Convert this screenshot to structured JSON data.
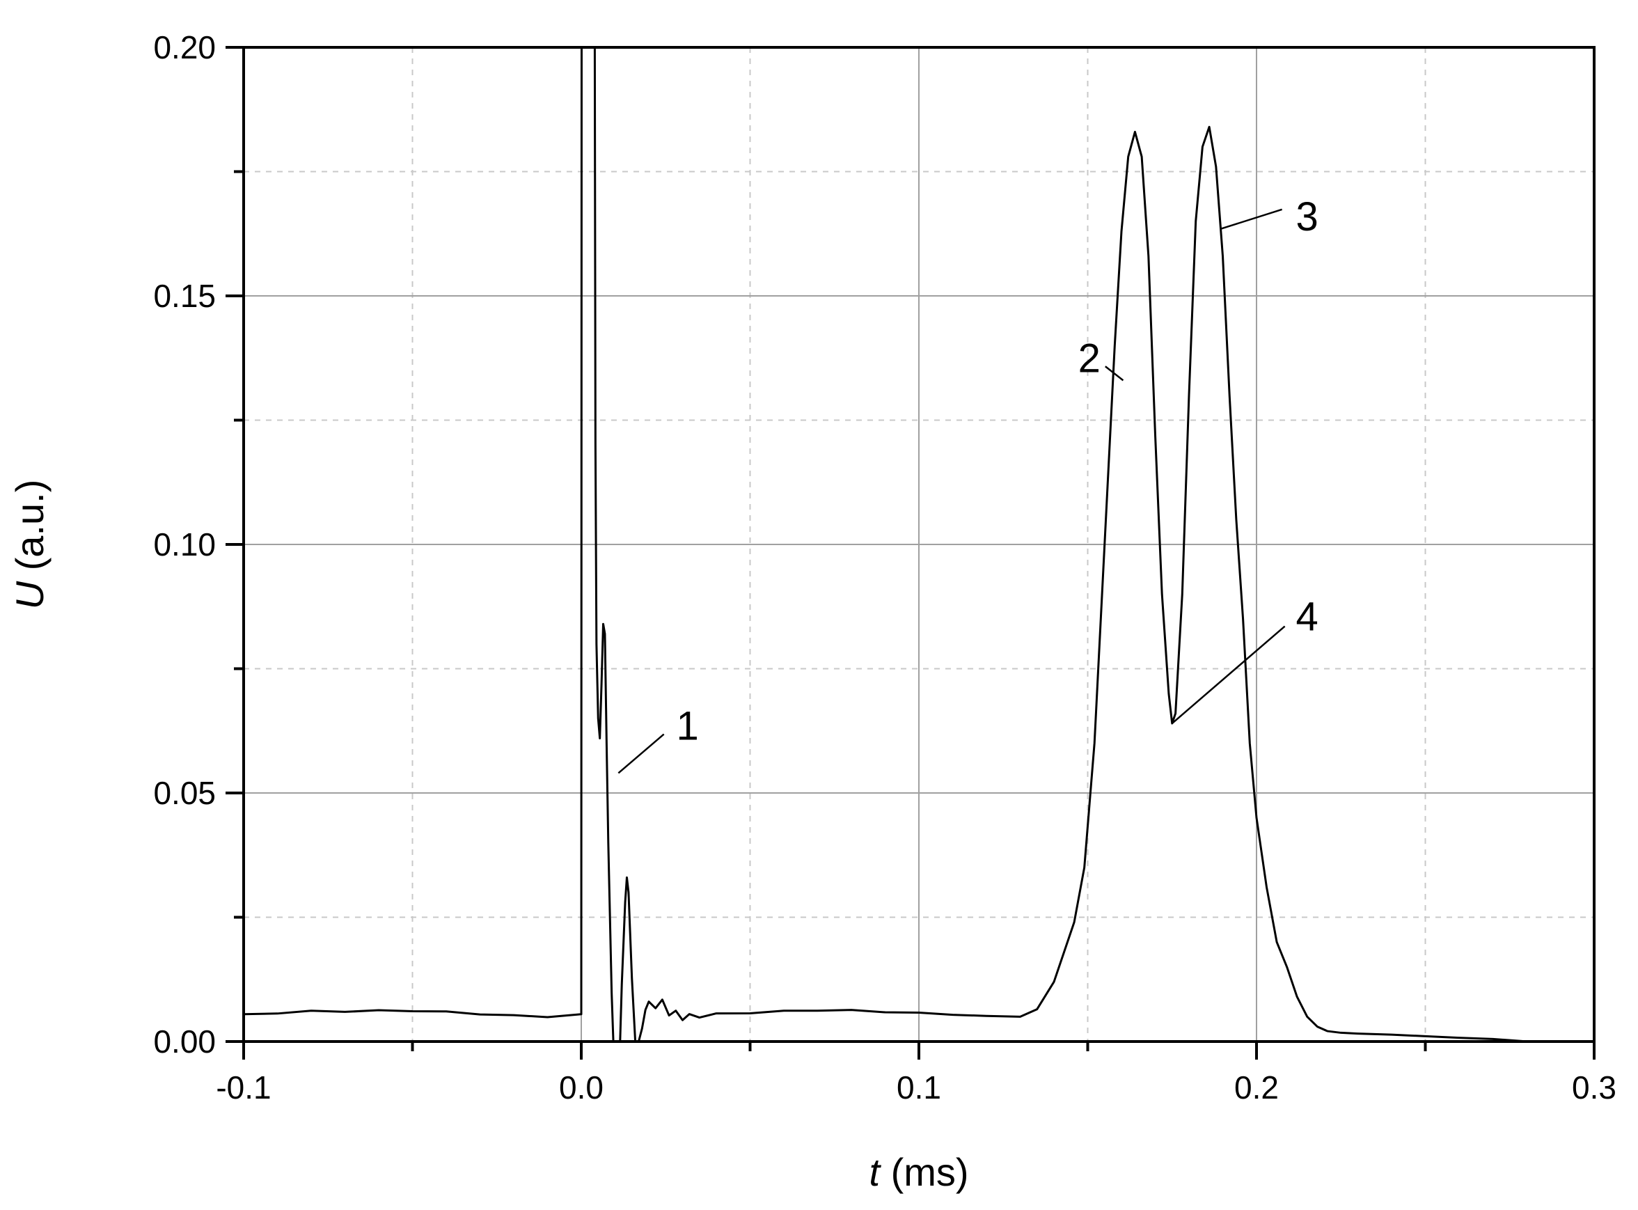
{
  "chart_data": {
    "type": "line",
    "title": "",
    "xlabel_var": "t",
    "xlabel_unit": " (ms)",
    "ylabel_var": "U",
    "ylabel_unit": " (a.u.)",
    "xlim": [
      -0.1,
      0.3
    ],
    "ylim": [
      0,
      0.2
    ],
    "x_ticks": [
      -0.1,
      0.0,
      0.1,
      0.2,
      0.3
    ],
    "x_tick_labels": [
      "-0.1",
      "0.0",
      "0.1",
      "0.2",
      "0.3"
    ],
    "y_ticks": [
      0.0,
      0.05,
      0.1,
      0.15,
      0.2
    ],
    "y_tick_labels": [
      "0.00",
      "0.05",
      "0.10",
      "0.15",
      "0.20"
    ],
    "grid": true,
    "line_color": "#000000",
    "grid_major_color": "#a0a0a0",
    "grid_minor_color": "#c8c8c8",
    "series": [
      {
        "x": [
          -0.1,
          -0.09,
          -0.08,
          -0.07,
          -0.06,
          -0.05,
          -0.04,
          -0.03,
          -0.02,
          -0.01,
          0.0,
          0.0001,
          0.0003,
          0.004,
          0.0042,
          0.0045,
          0.005,
          0.0055,
          0.006,
          0.0065,
          0.007,
          0.0075,
          0.008,
          0.009,
          0.0095,
          0.01,
          0.0105,
          0.0115,
          0.012,
          0.013,
          0.0135,
          0.014,
          0.015,
          0.016,
          0.017,
          0.018,
          0.019,
          0.02,
          0.022,
          0.024,
          0.026,
          0.028,
          0.03,
          0.032,
          0.035,
          0.04,
          0.05,
          0.06,
          0.07,
          0.08,
          0.09,
          0.1,
          0.11,
          0.12,
          0.13,
          0.135,
          0.14,
          0.143,
          0.146,
          0.149,
          0.152,
          0.155,
          0.158,
          0.16,
          0.162,
          0.164,
          0.166,
          0.168,
          0.17,
          0.172,
          0.174,
          0.175,
          0.176,
          0.178,
          0.18,
          0.182,
          0.184,
          0.186,
          0.188,
          0.19,
          0.192,
          0.194,
          0.196,
          0.198,
          0.2,
          0.203,
          0.206,
          0.209,
          0.212,
          0.215,
          0.218,
          0.221,
          0.225,
          0.23,
          0.24,
          0.25,
          0.26,
          0.27,
          0.28,
          0.29,
          0.3
        ],
        "y": [
          0.0055,
          0.0053,
          0.0056,
          0.0052,
          0.0055,
          0.0054,
          0.0056,
          0.0053,
          0.0055,
          0.0054,
          0.0055,
          0.2,
          0.2,
          0.2,
          0.12,
          0.08,
          0.065,
          0.061,
          0.072,
          0.084,
          0.082,
          0.06,
          0.04,
          0.01,
          0.0,
          0.0,
          0.0,
          0.0,
          0.012,
          0.028,
          0.033,
          0.03,
          0.012,
          0.0,
          0.0,
          0.002,
          0.006,
          0.008,
          0.007,
          0.009,
          0.006,
          0.007,
          0.005,
          0.006,
          0.005,
          0.0055,
          0.0052,
          0.0055,
          0.0054,
          0.0056,
          0.0053,
          0.0055,
          0.0054,
          0.0055,
          0.0056,
          0.0065,
          0.012,
          0.018,
          0.024,
          0.035,
          0.06,
          0.1,
          0.14,
          0.163,
          0.178,
          0.183,
          0.178,
          0.158,
          0.122,
          0.09,
          0.07,
          0.064,
          0.066,
          0.09,
          0.13,
          0.165,
          0.18,
          0.184,
          0.176,
          0.158,
          0.13,
          0.105,
          0.085,
          0.06,
          0.045,
          0.031,
          0.02,
          0.015,
          0.009,
          0.005,
          0.003,
          0.0015,
          0.001,
          0.0008,
          0.0007,
          0.0006,
          0.0006,
          0.0007,
          0.0005,
          0.0006,
          0.0005
        ]
      }
    ],
    "annotations": [
      {
        "label": "1",
        "x": 0.029,
        "y": 0.0635,
        "target_x": 0.011,
        "target_y": 0.054
      },
      {
        "label": "2",
        "x": 0.148,
        "y": 0.1375,
        "target_x": 0.1605,
        "target_y": 0.133
      },
      {
        "label": "3",
        "x": 0.2125,
        "y": 0.166,
        "target_x": 0.1895,
        "target_y": 0.1635
      },
      {
        "label": "4",
        "x": 0.2125,
        "y": 0.0855,
        "target_x": 0.175,
        "target_y": 0.064
      }
    ]
  }
}
